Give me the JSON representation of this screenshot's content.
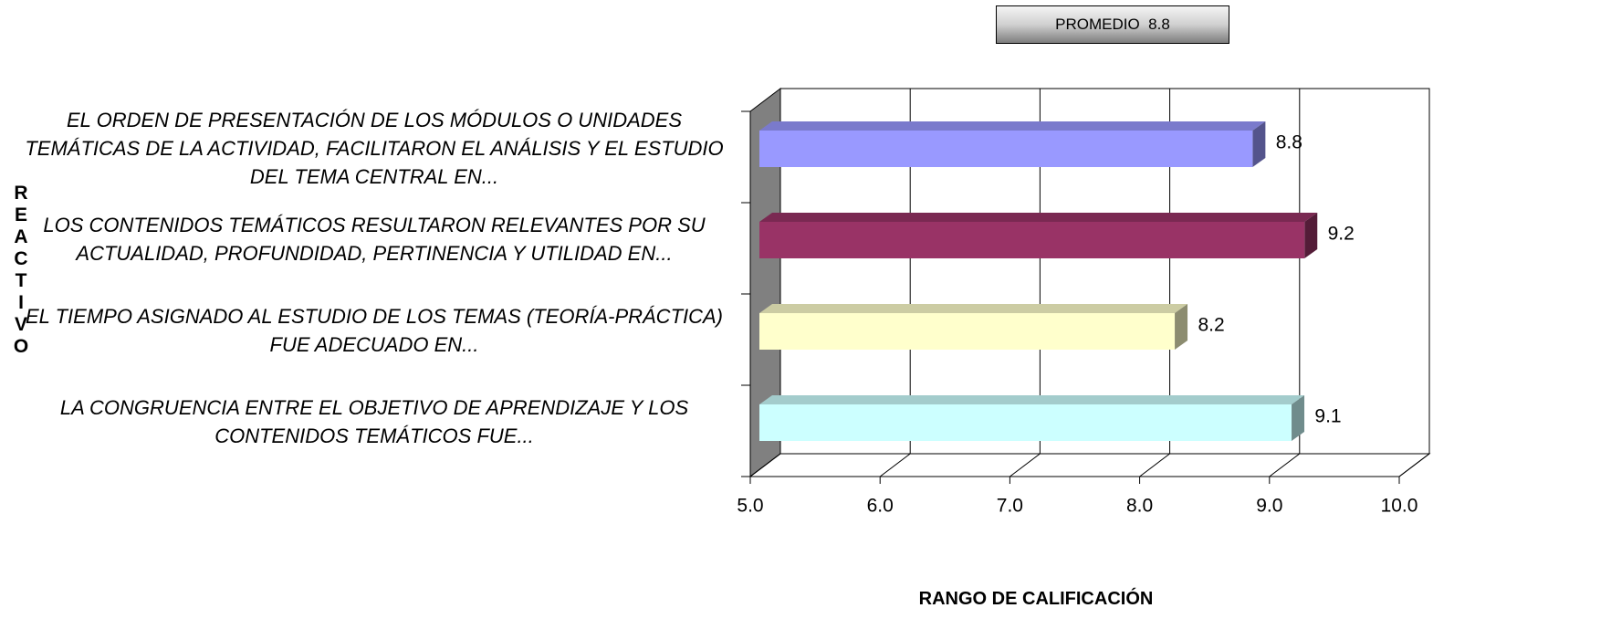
{
  "chart_data": {
    "type": "bar3d_horizontal",
    "annotation": "PROMEDIO  8.8",
    "y_label": "REACTIVO",
    "x_label": "RANGO DE CALIFICACIÓN",
    "categories": [
      "EL ORDEN DE PRESENTACIÓN DE LOS MÓDULOS O UNIDADES TEMÁTICAS DE LA ACTIVIDAD, FACILITARON EL ANÁLISIS Y EL ESTUDIO DEL TEMA CENTRAL EN...",
      "LOS CONTENIDOS TEMÁTICOS RESULTARON RELEVANTES POR SU ACTUALIDAD, PROFUNDIDAD, PERTINENCIA Y UTILIDAD EN...",
      "EL TIEMPO ASIGNADO AL ESTUDIO DE LOS TEMAS (TEORÍA-PRÁCTICA) FUE ADECUADO EN...",
      "LA CONGRUENCIA ENTRE EL OBJETIVO DE APRENDIZAJE Y LOS CONTENIDOS TEMÁTICOS FUE..."
    ],
    "values": [
      8.8,
      9.2,
      8.2,
      9.1
    ],
    "colors": [
      "#9999ff",
      "#993366",
      "#ffffcc",
      "#ccffff"
    ],
    "xlim": [
      5,
      10
    ],
    "xticks": [
      {
        "value": 5,
        "label": "5.0"
      },
      {
        "value": 6,
        "label": "6.0"
      },
      {
        "value": 7,
        "label": "7.0"
      },
      {
        "value": 8,
        "label": "8.0"
      },
      {
        "value": 9,
        "label": "9.0"
      },
      {
        "value": 10,
        "label": "10.0"
      }
    ],
    "grid": true
  }
}
